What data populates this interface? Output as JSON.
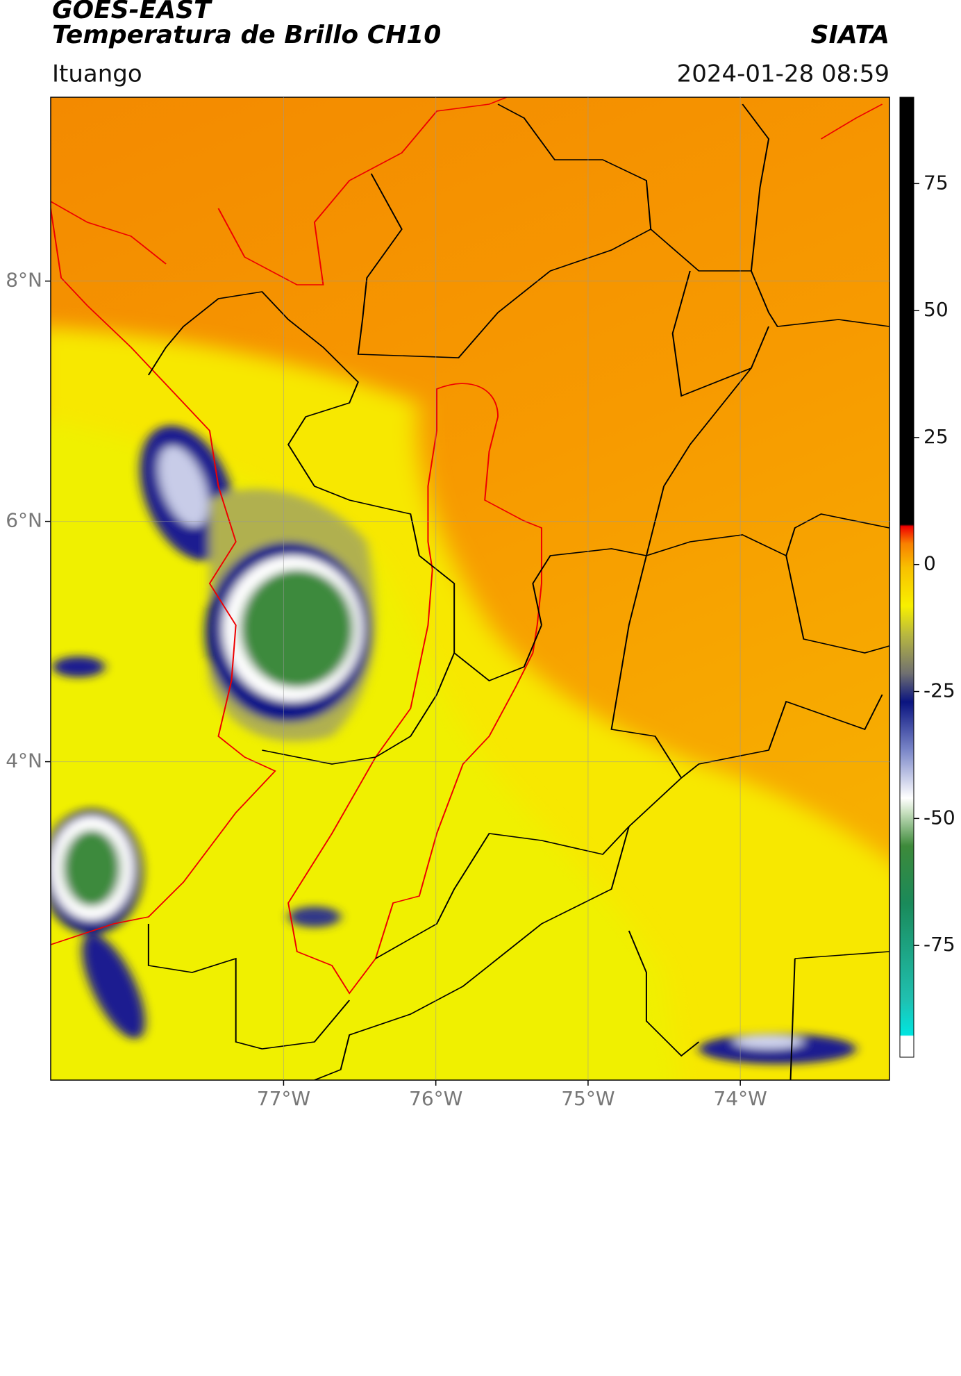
{
  "header": {
    "title": "GOES-EAST",
    "subtitle": "Temperatura de Brillo CH10",
    "source": "SIATA",
    "location": "Ituango",
    "datetime": "2024-01-28 08:59"
  },
  "map": {
    "xlim": [
      -78.53,
      -73.02
    ],
    "ylim": [
      1.35,
      9.53
    ],
    "xticks": [
      {
        "value": -77,
        "label": "77°W"
      },
      {
        "value": -76,
        "label": "76°W"
      },
      {
        "value": -75,
        "label": "75°W"
      },
      {
        "value": -74,
        "label": "74°W"
      }
    ],
    "yticks": [
      {
        "value": 8,
        "label": "8°N"
      },
      {
        "value": 6,
        "label": "6°N"
      },
      {
        "value": 4,
        "label": "4°N"
      }
    ],
    "grid": true
  },
  "colorbar": {
    "lim": [
      -97,
      92
    ],
    "ticks": [
      75,
      50,
      25,
      0,
      -25,
      -50,
      -75
    ]
  }
}
